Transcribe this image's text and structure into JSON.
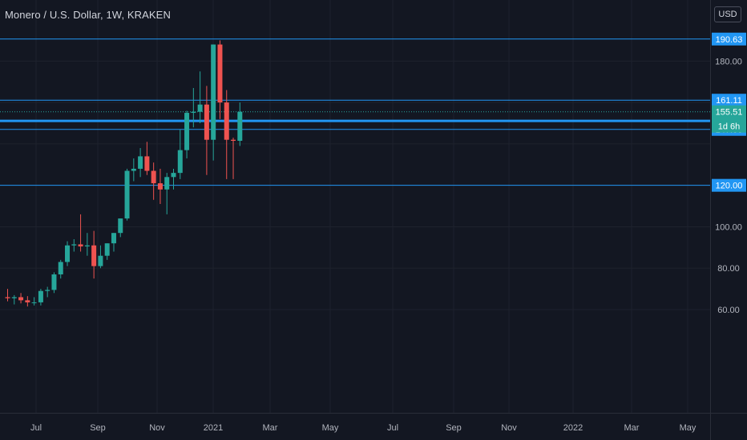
{
  "chart_data": {
    "type": "candlestick",
    "title": "Monero / U.S. Dollar, 1W, KRAKEN",
    "currency": "USD",
    "x_tick_labels": [
      "Jul",
      "Sep",
      "Nov",
      "2021",
      "Mar",
      "May",
      "Jul",
      "Sep",
      "Nov",
      "2022",
      "Mar",
      "May"
    ],
    "y_tick_labels": [
      "180.00",
      "100.00",
      "80.00",
      "60.00"
    ],
    "ylim": [
      51,
      196
    ],
    "horizontal_levels": [
      {
        "value": 190.63,
        "label": "190.63"
      },
      {
        "value": 161.11,
        "label": "161.11"
      },
      {
        "value": 147.0,
        "label": "147.00"
      },
      {
        "value": 120.0,
        "label": "120.00"
      }
    ],
    "current_price": {
      "value": 155.51,
      "label": "155.51",
      "countdown": "1d 6h"
    },
    "highlight_level": {
      "value": 151.1
    },
    "candles": [
      {
        "o": 66.0,
        "h": 70.0,
        "l": 64.0,
        "c": 65.5
      },
      {
        "o": 65.5,
        "h": 67.0,
        "l": 62.5,
        "c": 66.0
      },
      {
        "o": 66.0,
        "h": 68.0,
        "l": 63.0,
        "c": 64.5
      },
      {
        "o": 64.5,
        "h": 66.5,
        "l": 61.5,
        "c": 63.5
      },
      {
        "o": 63.5,
        "h": 66.0,
        "l": 62.0,
        "c": 63.5
      },
      {
        "o": 63.5,
        "h": 70.0,
        "l": 62.0,
        "c": 69.0
      },
      {
        "o": 69.0,
        "h": 71.0,
        "l": 66.0,
        "c": 69.5
      },
      {
        "o": 69.5,
        "h": 78.0,
        "l": 68.0,
        "c": 77.0
      },
      {
        "o": 77.0,
        "h": 84.0,
        "l": 75.0,
        "c": 83.0
      },
      {
        "o": 83.0,
        "h": 93.0,
        "l": 81.0,
        "c": 91.0
      },
      {
        "o": 91.0,
        "h": 94.0,
        "l": 88.0,
        "c": 91.5
      },
      {
        "o": 91.5,
        "h": 106.0,
        "l": 88.0,
        "c": 90.5
      },
      {
        "o": 90.5,
        "h": 97.0,
        "l": 86.0,
        "c": 91.0
      },
      {
        "o": 91.0,
        "h": 98.0,
        "l": 75.0,
        "c": 81.0
      },
      {
        "o": 81.0,
        "h": 91.0,
        "l": 80.0,
        "c": 86.0
      },
      {
        "o": 86.0,
        "h": 92.0,
        "l": 84.0,
        "c": 92.0
      },
      {
        "o": 92.0,
        "h": 97.0,
        "l": 88.0,
        "c": 97.0
      },
      {
        "o": 97.0,
        "h": 104.0,
        "l": 95.0,
        "c": 104.0
      },
      {
        "o": 104.0,
        "h": 128.0,
        "l": 103.0,
        "c": 127.0
      },
      {
        "o": 127.0,
        "h": 133.0,
        "l": 122.0,
        "c": 128.0
      },
      {
        "o": 128.0,
        "h": 138.0,
        "l": 124.0,
        "c": 134.0
      },
      {
        "o": 134.0,
        "h": 141.0,
        "l": 125.0,
        "c": 127.0
      },
      {
        "o": 127.0,
        "h": 131.0,
        "l": 113.0,
        "c": 121.0
      },
      {
        "o": 121.0,
        "h": 128.0,
        "l": 111.0,
        "c": 118.0
      },
      {
        "o": 118.0,
        "h": 126.0,
        "l": 106.0,
        "c": 124.0
      },
      {
        "o": 124.0,
        "h": 128.0,
        "l": 118.0,
        "c": 126.0
      },
      {
        "o": 126.0,
        "h": 147.0,
        "l": 123.0,
        "c": 137.0
      },
      {
        "o": 137.0,
        "h": 156.0,
        "l": 133.0,
        "c": 155.0
      },
      {
        "o": 155.0,
        "h": 167.0,
        "l": 148.0,
        "c": 155.5
      },
      {
        "o": 155.5,
        "h": 175.0,
        "l": 150.0,
        "c": 159.0
      },
      {
        "o": 159.0,
        "h": 168.0,
        "l": 125.0,
        "c": 142.0
      },
      {
        "o": 142.0,
        "h": 188.0,
        "l": 132.0,
        "c": 188.0
      },
      {
        "o": 188.0,
        "h": 190.0,
        "l": 152.0,
        "c": 160.0
      },
      {
        "o": 160.0,
        "h": 166.0,
        "l": 123.0,
        "c": 142.0
      },
      {
        "o": 142.0,
        "h": 143.0,
        "l": 123.0,
        "c": 141.5
      },
      {
        "o": 141.5,
        "h": 160.0,
        "l": 139.0,
        "c": 155.5
      }
    ]
  },
  "colors": {
    "background": "#131722",
    "up": "#26a69a",
    "down": "#ef5350",
    "level": "#2196f3",
    "grid": "#1e222d",
    "axis_text": "#b2b5be"
  }
}
